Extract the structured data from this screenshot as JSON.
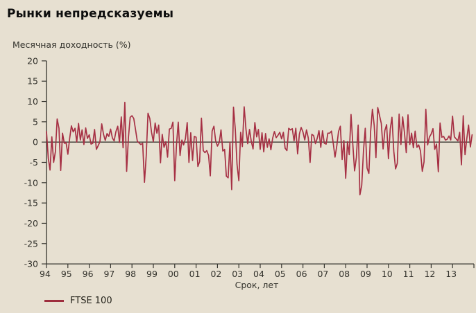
{
  "title": "Рынки непредсказуемы",
  "subtitle": "Месячная доходность (%)",
  "xlabel": "Срок, лет",
  "legend": {
    "label": "FTSE 100"
  },
  "colors": {
    "background": "#e7e0d1",
    "line": "#a63044",
    "legend_swatch": "#9e2e3e",
    "axis": "#35342e",
    "text": "#33322c",
    "title_text": "#0e0e0e"
  },
  "chart_data": {
    "type": "line",
    "title": "Рынки непредсказуемы",
    "subtitle": "Месячная доходность (%)",
    "xlabel": "Срок, лет",
    "ylabel": "Месячная доходность (%)",
    "ylim": [
      -30,
      20
    ],
    "yticks": [
      20,
      15,
      10,
      5,
      0,
      -5,
      -10,
      -15,
      -20,
      -25,
      -30
    ],
    "x_tick_labels": [
      "94",
      "95",
      "96",
      "97",
      "98",
      "99",
      "00",
      "01",
      "02",
      "03",
      "04",
      "05",
      "06",
      "07",
      "08",
      "09",
      "10",
      "11",
      "12",
      "13"
    ],
    "grid": false,
    "zero_line": true,
    "legend_position": "bottom-left",
    "x_start_year": 1994,
    "frequency": "monthly",
    "series": [
      {
        "name": "FTSE 100",
        "color": "#a63044",
        "values": [
          2.6,
          -4.0,
          -6.9,
          1.3,
          -5.0,
          -2.4,
          5.7,
          3.4,
          -7.0,
          2.2,
          -0.3,
          -0.1,
          -3.0,
          0.9,
          4.0,
          2.5,
          3.4,
          0.0,
          4.6,
          0.5,
          3.0,
          -0.6,
          3.5,
          0.9,
          1.8,
          -0.5,
          -0.3,
          3.1,
          -1.8,
          -0.9,
          0.1,
          4.5,
          2.0,
          0.4,
          2.1,
          1.4,
          3.2,
          1.0,
          0.3,
          2.6,
          3.9,
          -0.1,
          6.2,
          -1.4,
          9.8,
          -7.2,
          1.1,
          6.1,
          6.5,
          5.8,
          3.1,
          0.2,
          -0.2,
          -0.6,
          -0.3,
          -9.9,
          -3.5,
          7.1,
          5.8,
          2.4,
          0.1,
          4.7,
          2.2,
          4.2,
          -5.1,
          1.9,
          -1.3,
          0.1,
          -3.7,
          3.2,
          3.4,
          4.9,
          -9.5,
          -0.6,
          4.9,
          -3.3,
          0.5,
          -0.7,
          0.8,
          4.8,
          -5.0,
          2.3,
          -4.5,
          1.4,
          1.2,
          -6.0,
          -4.8,
          5.9,
          -2.1,
          -2.6,
          -2.1,
          -3.3,
          -8.3,
          2.7,
          3.9,
          0.3,
          -1.0,
          -0.1,
          3.0,
          -2.2,
          -1.8,
          -8.4,
          -8.8,
          0.0,
          -11.7,
          8.6,
          3.2,
          -5.5,
          -9.5,
          2.4,
          -1.1,
          8.7,
          3.1,
          -0.4,
          3.1,
          0.1,
          -1.7,
          4.8,
          1.3,
          3.1,
          -1.8,
          2.3,
          -2.4,
          2.1,
          -1.3,
          0.8,
          -1.9,
          1.0,
          2.6,
          1.1,
          1.7,
          2.4,
          0.8,
          2.4,
          -1.5,
          -2.1,
          3.4,
          3.0,
          3.3,
          0.3,
          3.4,
          -2.9,
          2.0,
          3.6,
          2.5,
          0.5,
          3.0,
          1.0,
          -5.0,
          1.9,
          1.6,
          -0.4,
          0.9,
          2.8,
          -1.3,
          2.8,
          -0.3,
          -0.5,
          2.2,
          2.2,
          2.7,
          -0.2,
          -3.7,
          -0.9,
          2.6,
          3.9,
          -4.3,
          0.4,
          -8.9,
          0.1,
          -3.1,
          6.8,
          -0.6,
          -7.1,
          -3.8,
          4.2,
          -13.0,
          -10.7,
          -2.0,
          3.4,
          -6.4,
          -7.7,
          2.5,
          8.1,
          4.1,
          -3.8,
          8.5,
          6.5,
          4.6,
          -1.7,
          2.9,
          4.3,
          -4.1,
          3.2,
          6.1,
          -2.2,
          -6.6,
          -5.2,
          6.9,
          -0.6,
          6.2,
          2.3,
          -2.6,
          6.7,
          -0.6,
          2.2,
          -1.4,
          2.7,
          -1.3,
          -0.7,
          -2.2,
          -7.2,
          -4.9,
          8.1,
          -0.7,
          1.2,
          2.0,
          3.3,
          -1.8,
          -0.5,
          -7.3,
          4.7,
          1.2,
          1.4,
          0.5,
          0.7,
          1.5,
          0.5,
          6.4,
          1.3,
          0.8,
          0.3,
          2.4,
          -5.6,
          6.5,
          -3.1,
          0.8,
          4.2,
          -1.2,
          1.8
        ]
      }
    ]
  }
}
